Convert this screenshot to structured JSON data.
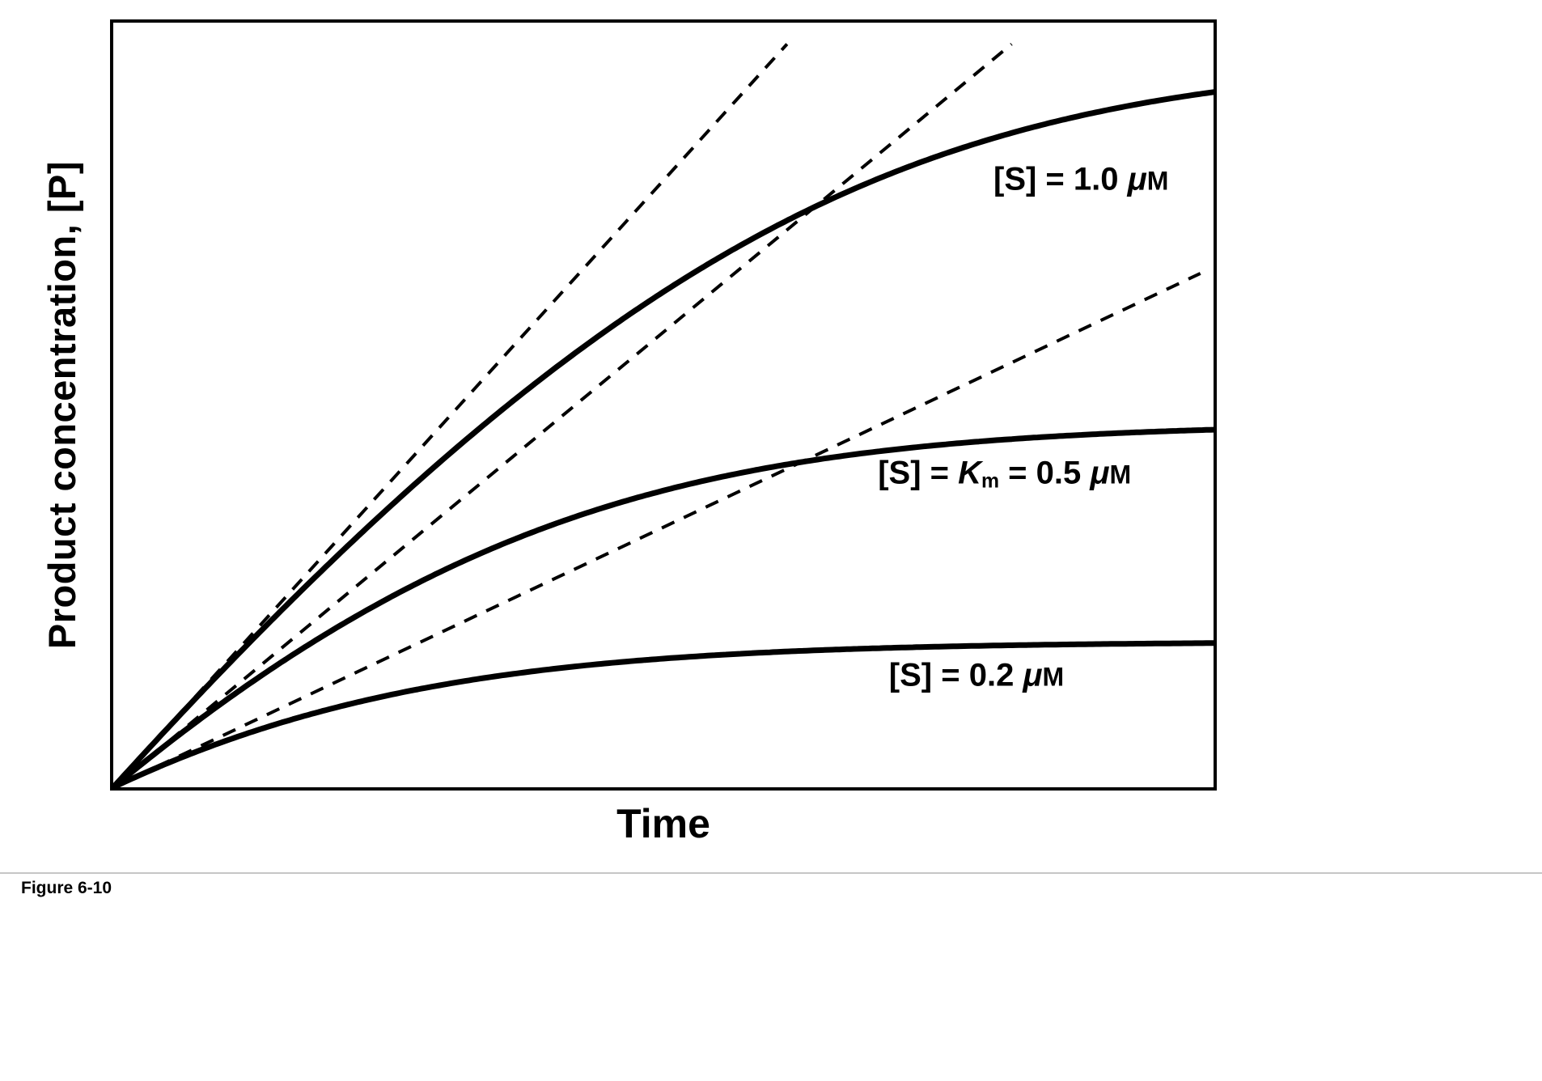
{
  "page": {
    "background": "#ffffff",
    "line_color": "#000000",
    "divider_color": "#c6c6c6"
  },
  "caption": "Figure 6-10",
  "chart_data": {
    "type": "line",
    "title": "",
    "xlabel": "Time",
    "ylabel": "Product concentration, [P]",
    "x_range": [
      0,
      2.5
    ],
    "y_range": [
      0,
      1.05
    ],
    "grid": false,
    "legend_position": "inline-labels",
    "model": "Michaelis-Menten reaction progress curves (solid) with initial-velocity tangent lines through the origin (dashed)",
    "Km_uM": 0.5,
    "Vmax": 1.0,
    "axes_units": "arbitrary (no tick marks or numeric scales shown)",
    "series": [
      {
        "id": "s-1.0",
        "label_text": "[S] = 1.0 μM",
        "S0_uM": 1.0,
        "plateau_uM": 1.0,
        "initial_rate": 0.667,
        "t_samples": [
          0,
          0.25,
          0.5,
          0.75,
          1.0,
          1.25,
          1.5,
          1.75,
          2.0,
          2.25,
          2.5
        ],
        "P_samples": [
          0,
          0.16,
          0.31,
          0.45,
          0.575,
          0.68,
          0.77,
          0.84,
          0.89,
          0.93,
          0.955
        ],
        "label": {
          "pos": {
            "x": 0.8,
            "y": 0.205
          },
          "parts": [
            {
              "t": "[S] = 1.0 "
            },
            {
              "t": "μ",
              "s": "it"
            },
            {
              "t": "M",
              "s": "sc"
            }
          ]
        }
      },
      {
        "id": "s-0.5",
        "label_text": "[S] = Km = 0.5 μM",
        "S0_uM": 0.5,
        "plateau_uM": 0.5,
        "initial_rate": 0.5,
        "t_samples": [
          0,
          0.25,
          0.5,
          0.75,
          1.0,
          1.25,
          1.5,
          1.75,
          2.0,
          2.25,
          2.5
        ],
        "P_samples": [
          0,
          0.118,
          0.215,
          0.3,
          0.36,
          0.407,
          0.44,
          0.462,
          0.476,
          0.485,
          0.491
        ],
        "label": {
          "pos": {
            "x": 0.695,
            "y": 0.59
          },
          "parts": [
            {
              "t": "[S] = "
            },
            {
              "t": "K",
              "s": "it"
            },
            {
              "t": "m",
              "s": "sub"
            },
            {
              "t": " = 0.5 "
            },
            {
              "t": "μ",
              "s": "it"
            },
            {
              "t": "M",
              "s": "sc"
            }
          ]
        }
      },
      {
        "id": "s-0.2",
        "label_text": "[S] = 0.2 μM",
        "S0_uM": 0.2,
        "plateau_uM": 0.2,
        "initial_rate": 0.286,
        "t_samples": [
          0,
          0.25,
          0.5,
          0.75,
          1.0,
          1.25,
          1.5,
          1.75,
          2.0,
          2.25,
          2.5
        ],
        "P_samples": [
          0,
          0.063,
          0.108,
          0.14,
          0.162,
          0.177,
          0.185,
          0.191,
          0.194,
          0.197,
          0.198
        ],
        "label": {
          "pos": {
            "x": 0.705,
            "y": 0.854
          },
          "parts": [
            {
              "t": "[S] = 0.2 "
            },
            {
              "t": "μ",
              "s": "it"
            },
            {
              "t": "M",
              "s": "sc"
            }
          ]
        }
      }
    ],
    "dashed_lines": "one tangent per series from origin with slope equal to that curve's initial velocity v0 = Vmax*[S]/(Km+[S])"
  }
}
